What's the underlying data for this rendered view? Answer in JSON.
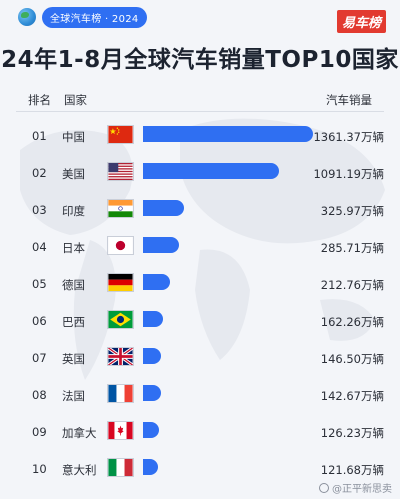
{
  "header": {
    "tag": "全球汽车榜 · 2024",
    "logo_text": "易车榜",
    "title": "24年1-8月全球汽车销量TOP10国家"
  },
  "columns": {
    "rank": "排名",
    "country": "国家",
    "sales": "汽车销量"
  },
  "watermark": "@正平新思卖",
  "colors": {
    "bar": "#2f6ff2",
    "tag": "#2f6ff2",
    "logo": "#e23a30"
  },
  "chart_data": {
    "type": "bar",
    "orientation": "horizontal",
    "title": "24年1-8月全球汽车销量TOP10国家",
    "unit": "万辆",
    "categories": [
      "中国",
      "美国",
      "印度",
      "日本",
      "德国",
      "巴西",
      "英国",
      "法国",
      "加拿大",
      "意大利"
    ],
    "values": [
      1361.37,
      1091.19,
      325.97,
      285.71,
      212.76,
      162.26,
      146.5,
      142.67,
      126.23,
      121.68
    ],
    "rows": [
      {
        "rank": "01",
        "country": "中国",
        "flag": "cn",
        "value": 1361.37,
        "label": "1361.37万辆"
      },
      {
        "rank": "02",
        "country": "美国",
        "flag": "us",
        "value": 1091.19,
        "label": "1091.19万辆"
      },
      {
        "rank": "03",
        "country": "印度",
        "flag": "in",
        "value": 325.97,
        "label": "325.97万辆"
      },
      {
        "rank": "04",
        "country": "日本",
        "flag": "jp",
        "value": 285.71,
        "label": "285.71万辆"
      },
      {
        "rank": "05",
        "country": "德国",
        "flag": "de",
        "value": 212.76,
        "label": "212.76万辆"
      },
      {
        "rank": "06",
        "country": "巴西",
        "flag": "br",
        "value": 162.26,
        "label": "162.26万辆"
      },
      {
        "rank": "07",
        "country": "英国",
        "flag": "gb",
        "value": 146.5,
        "label": "146.50万辆"
      },
      {
        "rank": "08",
        "country": "法国",
        "flag": "fr",
        "value": 142.67,
        "label": "142.67万辆"
      },
      {
        "rank": "09",
        "country": "加拿大",
        "flag": "ca",
        "value": 126.23,
        "label": "126.23万辆"
      },
      {
        "rank": "10",
        "country": "意大利",
        "flag": "it",
        "value": 121.68,
        "label": "121.68万辆"
      }
    ]
  }
}
